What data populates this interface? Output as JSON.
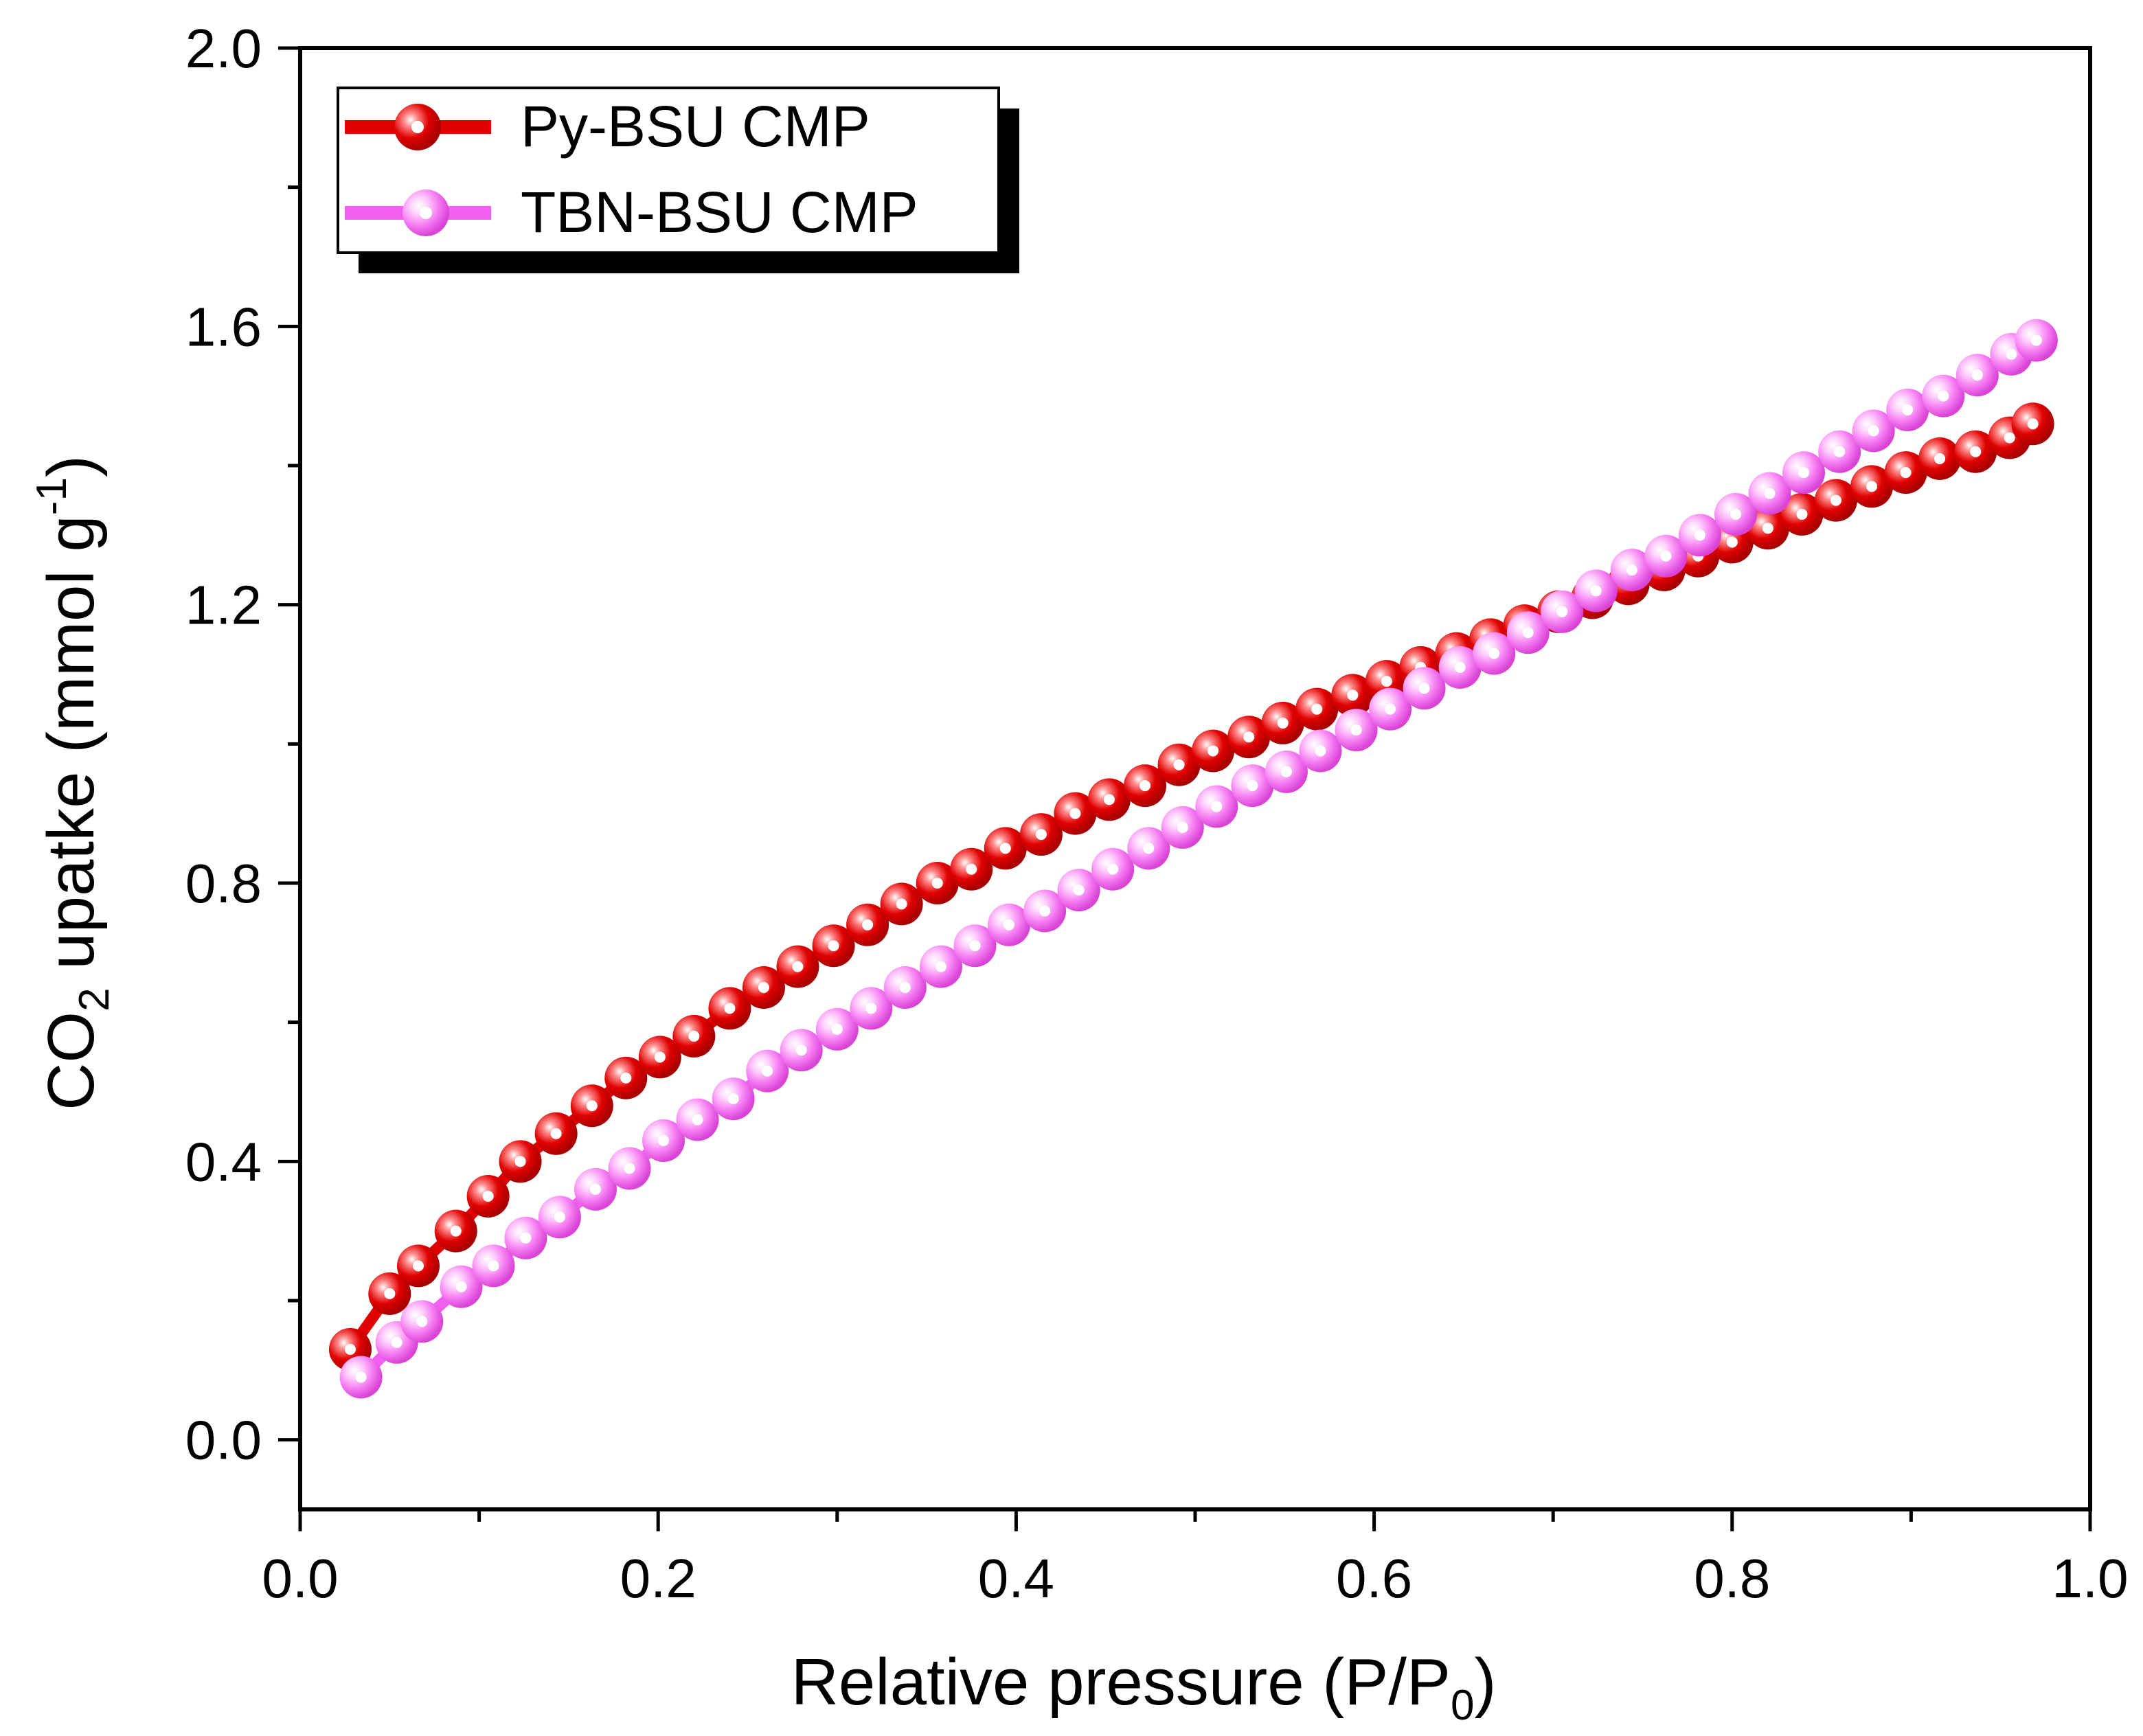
{
  "chart_data": {
    "type": "scatter",
    "title": "",
    "xlabel": {
      "main": "Relative pressure (P/P",
      "sub": "0",
      "end": ")"
    },
    "ylabel": {
      "pre": "CO",
      "sub": "2",
      "mid": " upatke (mmol g",
      "sup": "-1",
      "end": ")"
    },
    "xlim": [
      0.0,
      1.0
    ],
    "ylim": [
      -0.1,
      2.0
    ],
    "xticks": [
      0.0,
      0.2,
      0.4,
      0.6,
      0.8,
      1.0
    ],
    "xtick_labels": [
      "0.0",
      "0.2",
      "0.4",
      "0.6",
      "0.8",
      "1.0"
    ],
    "yticks": [
      0.0,
      0.4,
      0.8,
      1.2,
      1.6,
      2.0
    ],
    "ytick_labels": [
      "0.0",
      "0.4",
      "0.8",
      "1.2",
      "1.6",
      "2.0"
    ],
    "grid": false,
    "legend_position": "top-left",
    "series": [
      {
        "name": "Py-BSU CMP",
        "color": "#e00000",
        "highlight": "#ff6a6a",
        "x": [
          0.028,
          0.05,
          0.066,
          0.087,
          0.105,
          0.123,
          0.143,
          0.163,
          0.182,
          0.201,
          0.22,
          0.24,
          0.259,
          0.278,
          0.298,
          0.317,
          0.336,
          0.356,
          0.375,
          0.394,
          0.414,
          0.433,
          0.452,
          0.472,
          0.491,
          0.51,
          0.53,
          0.549,
          0.568,
          0.588,
          0.607,
          0.626,
          0.646,
          0.665,
          0.684,
          0.703,
          0.722,
          0.742,
          0.762,
          0.781,
          0.8,
          0.82,
          0.839,
          0.858,
          0.878,
          0.897,
          0.916,
          0.936,
          0.955,
          0.968
        ],
        "y": [
          0.13,
          0.21,
          0.25,
          0.3,
          0.35,
          0.4,
          0.44,
          0.48,
          0.52,
          0.55,
          0.58,
          0.62,
          0.65,
          0.68,
          0.71,
          0.74,
          0.77,
          0.8,
          0.82,
          0.85,
          0.87,
          0.9,
          0.92,
          0.94,
          0.97,
          0.99,
          1.01,
          1.03,
          1.05,
          1.07,
          1.09,
          1.11,
          1.13,
          1.15,
          1.17,
          1.19,
          1.21,
          1.23,
          1.25,
          1.27,
          1.29,
          1.31,
          1.33,
          1.35,
          1.37,
          1.39,
          1.41,
          1.42,
          1.44,
          1.46
        ]
      },
      {
        "name": "TBN-BSU CMP",
        "color": "#f25ff0",
        "highlight": "#ffd6fb",
        "x": [
          0.034,
          0.054,
          0.068,
          0.09,
          0.108,
          0.126,
          0.145,
          0.165,
          0.184,
          0.203,
          0.222,
          0.242,
          0.261,
          0.28,
          0.3,
          0.319,
          0.338,
          0.358,
          0.377,
          0.396,
          0.416,
          0.435,
          0.454,
          0.474,
          0.493,
          0.512,
          0.532,
          0.551,
          0.57,
          0.59,
          0.609,
          0.628,
          0.648,
          0.667,
          0.686,
          0.705,
          0.724,
          0.744,
          0.763,
          0.782,
          0.802,
          0.821,
          0.84,
          0.86,
          0.879,
          0.898,
          0.918,
          0.937,
          0.956,
          0.97
        ],
        "y": [
          0.09,
          0.14,
          0.17,
          0.22,
          0.25,
          0.29,
          0.32,
          0.36,
          0.39,
          0.43,
          0.46,
          0.49,
          0.53,
          0.56,
          0.59,
          0.62,
          0.65,
          0.68,
          0.71,
          0.74,
          0.76,
          0.79,
          0.82,
          0.85,
          0.88,
          0.91,
          0.94,
          0.96,
          0.99,
          1.02,
          1.05,
          1.08,
          1.11,
          1.13,
          1.16,
          1.19,
          1.22,
          1.25,
          1.27,
          1.3,
          1.33,
          1.36,
          1.39,
          1.42,
          1.45,
          1.48,
          1.5,
          1.53,
          1.56,
          1.58
        ]
      }
    ]
  }
}
